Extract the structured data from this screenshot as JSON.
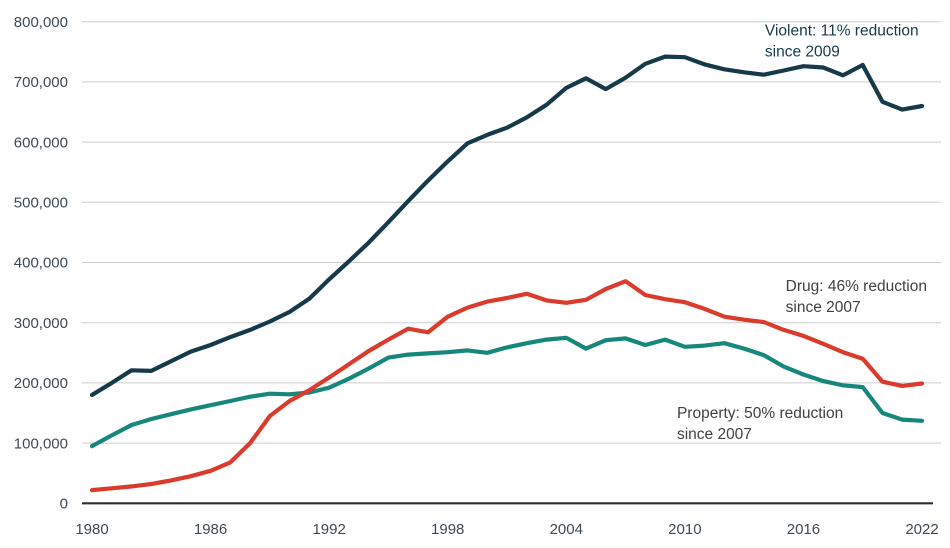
{
  "page": {
    "background": "#ffffff"
  },
  "chart_data": {
    "type": "line",
    "title": "",
    "xlabel": "",
    "ylabel": "",
    "xlim": [
      1980,
      2022
    ],
    "ylim": [
      0,
      800000
    ],
    "grid": "horizontal",
    "legend_position": "none (direct line annotations)",
    "x": [
      1980,
      1981,
      1982,
      1983,
      1984,
      1985,
      1986,
      1987,
      1988,
      1989,
      1990,
      1991,
      1992,
      1993,
      1994,
      1995,
      1996,
      1997,
      1998,
      1999,
      2000,
      2001,
      2002,
      2003,
      2004,
      2005,
      2006,
      2007,
      2008,
      2009,
      2010,
      2011,
      2012,
      2013,
      2014,
      2015,
      2016,
      2017,
      2018,
      2019,
      2020,
      2021,
      2022
    ],
    "x_ticks": [
      1980,
      1986,
      1992,
      1998,
      2004,
      2010,
      2016,
      2022
    ],
    "y_ticks": [
      0,
      100000,
      200000,
      300000,
      400000,
      500000,
      600000,
      700000,
      800000
    ],
    "y_tick_labels": [
      "0",
      "100,000",
      "200,000",
      "300,000",
      "400,000",
      "500,000",
      "600,000",
      "700,000",
      "800,000"
    ],
    "series": [
      {
        "name": "Violent",
        "color": "#163a4a",
        "values": [
          180000,
          200000,
          221000,
          220000,
          236000,
          252000,
          263000,
          276000,
          288000,
          302000,
          318000,
          340000,
          372000,
          402000,
          433000,
          467000,
          502000,
          536000,
          568000,
          598000,
          612000,
          624000,
          641000,
          662000,
          690000,
          706000,
          688000,
          707000,
          730000,
          742000,
          741000,
          729000,
          721000,
          716000,
          712000,
          719000,
          726000,
          724000,
          711000,
          728000,
          667000,
          654000,
          660000
        ]
      },
      {
        "name": "Property",
        "color": "#17877c",
        "values": [
          95000,
          113000,
          130000,
          140000,
          148000,
          156000,
          163000,
          170000,
          177000,
          182000,
          181000,
          184000,
          192000,
          207000,
          224000,
          242000,
          247000,
          249000,
          251000,
          254000,
          250000,
          259000,
          266000,
          272000,
          275000,
          257000,
          271000,
          274000,
          263000,
          272000,
          260000,
          262000,
          266000,
          257000,
          246000,
          227000,
          214000,
          203000,
          196000,
          193000,
          150000,
          139000,
          137000
        ]
      },
      {
        "name": "Drug",
        "color": "#da3b2c",
        "values": [
          22000,
          25000,
          28000,
          32000,
          38000,
          45000,
          54000,
          68000,
          100000,
          145000,
          170000,
          188000,
          209000,
          231000,
          253000,
          272000,
          290000,
          284000,
          310000,
          325000,
          335000,
          341000,
          348000,
          337000,
          333000,
          338000,
          356000,
          369000,
          346000,
          339000,
          334000,
          323000,
          310000,
          305000,
          301000,
          288000,
          278000,
          265000,
          251000,
          240000,
          202000,
          195000,
          199000
        ]
      }
    ],
    "annotations": [
      {
        "id": "violent-note",
        "lines": [
          "Violent: 11% reduction",
          "since 2009"
        ],
        "color": "#163a4a",
        "x_year": 2014.05,
        "y_value": 800000
      },
      {
        "id": "drug-note",
        "lines": [
          "Drug: 46% reduction",
          "since 2007"
        ],
        "color": "#414042",
        "x_year": 2015.1,
        "y_value": 376000
      },
      {
        "id": "property-note",
        "lines": [
          "Property: 50% reduction",
          "since 2007"
        ],
        "color": "#414042",
        "x_year": 2009.6,
        "y_value": 165000
      }
    ],
    "style_colors": {
      "grid_line": "#cdcdcd",
      "axis_line": "#2d2d2d",
      "tick_text": "#3e4b54"
    }
  }
}
